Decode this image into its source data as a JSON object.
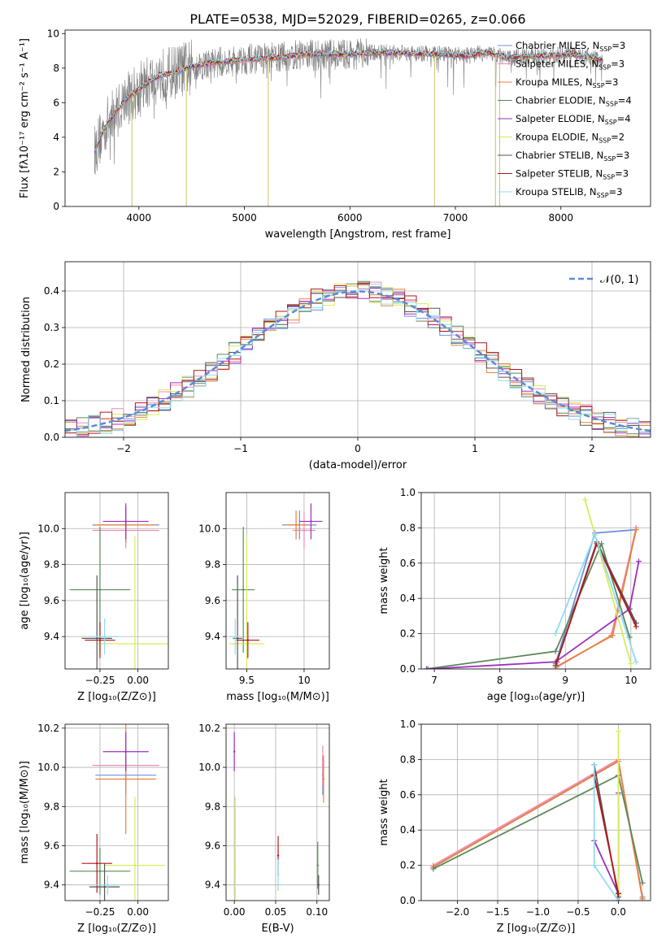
{
  "figure": {
    "title": "PLATE=0538, MJD=52029, FIBERID=0265, z=0.066"
  },
  "colors": {
    "Chabrier MILES": "#6f8fdf",
    "Salpeter MILES": "#f08ab5",
    "Kroupa MILES": "#e8823a",
    "Chabrier ELODIE": "#5a8a5a",
    "Salpeter ELODIE": "#9b30c0",
    "Kroupa ELODIE": "#d7ec5a",
    "Chabrier STELIB": "#555555",
    "Salpeter STELIB": "#b5161c",
    "Kroupa STELIB": "#8fdcef",
    "data": "#808080",
    "gauss": "#5b8bd9"
  },
  "chart_data": [
    {
      "id": "spectrum",
      "type": "line",
      "title": "PLATE=0538, MJD=52029, FIBERID=0265, z=0.066",
      "xlabel": "wavelength [Angstrom, rest frame]",
      "ylabel": "Flux [fλ10⁻¹⁷ erg cm⁻² s⁻¹ A⁻¹]",
      "xlim": [
        3300,
        8850
      ],
      "ylim": [
        0,
        10.2
      ],
      "xticks": [
        4000,
        5000,
        6000,
        7000,
        8000
      ],
      "yticks": [
        0,
        2,
        4,
        6,
        8,
        10
      ],
      "legend_position": "right",
      "legend": [
        {
          "label": "Chabrier MILES, N",
          "sub": "SSP",
          "n": "=3",
          "color": "#6f8fdf"
        },
        {
          "label": "Salpeter MILES, N",
          "sub": "SSP",
          "n": "=3",
          "color": "#f08ab5"
        },
        {
          "label": "Kroupa MILES, N",
          "sub": "SSP",
          "n": "=3",
          "color": "#e8823a"
        },
        {
          "label": "Chabrier ELODIE, N",
          "sub": "SSP",
          "n": "=4",
          "color": "#5a8a5a"
        },
        {
          "label": "Salpeter ELODIE, N",
          "sub": "SSP",
          "n": "=4",
          "color": "#9b30c0"
        },
        {
          "label": "Kroupa ELODIE, N",
          "sub": "SSP",
          "n": "=2",
          "color": "#d7ec5a"
        },
        {
          "label": "Chabrier STELIB, N",
          "sub": "SSP",
          "n": "=3",
          "color": "#555555"
        },
        {
          "label": "Salpeter STELIB, N",
          "sub": "SSP",
          "n": "=3",
          "color": "#b5161c"
        },
        {
          "label": "Kroupa STELIB, N",
          "sub": "SSP",
          "n": "=3",
          "color": "#8fdcef"
        }
      ],
      "continuum": {
        "x": [
          3580,
          3650,
          3700,
          3800,
          3900,
          4000,
          4100,
          4200,
          4300,
          4500,
          4700,
          5000,
          5300,
          5600,
          6000,
          6300,
          6600,
          6900,
          7100,
          7300,
          7500,
          7800,
          8100,
          8400
        ],
        "y": [
          3.2,
          4.2,
          4.8,
          5.6,
          6.3,
          6.8,
          7.2,
          7.6,
          7.7,
          8.1,
          8.3,
          8.5,
          8.6,
          8.8,
          8.8,
          8.9,
          8.85,
          8.8,
          8.7,
          8.9,
          8.6,
          8.7,
          8.8,
          8.5
        ]
      },
      "absorption_lines": [
        {
          "x": 3934,
          "y": 0.0
        },
        {
          "x": 4450,
          "y": 0.0
        },
        {
          "x": 5226,
          "y": 0.0
        },
        {
          "x": 6802,
          "y": 0.0
        },
        {
          "x": 7380,
          "y": 0.0
        },
        {
          "x": 7420,
          "y": 0.0
        }
      ]
    },
    {
      "id": "residuals",
      "type": "histogram",
      "xlabel": "(data-model)/error",
      "ylabel": "Normed distribution",
      "xlim": [
        -2.5,
        2.5
      ],
      "ylim": [
        0,
        0.48
      ],
      "xticks": [
        -2,
        -1,
        0,
        1,
        2
      ],
      "yticks": [
        0.0,
        0.1,
        0.2,
        0.3,
        0.4
      ],
      "legend_label": "𝒩(0, 1)",
      "legend_position": "upper right",
      "bins": [
        -2.5,
        -2.4,
        -2.3,
        -2.2,
        -2.1,
        -2.0,
        -1.9,
        -1.8,
        -1.7,
        -1.6,
        -1.5,
        -1.4,
        -1.3,
        -1.2,
        -1.1,
        -1.0,
        -0.9,
        -0.8,
        -0.7,
        -0.6,
        -0.5,
        -0.4,
        -0.3,
        -0.2,
        -0.1,
        0.0,
        0.1,
        0.2,
        0.3,
        0.4,
        0.5,
        0.6,
        0.7,
        0.8,
        0.9,
        1.0,
        1.1,
        1.2,
        1.3,
        1.4,
        1.5,
        1.6,
        1.7,
        1.8,
        1.9,
        2.0,
        2.1,
        2.2,
        2.3,
        2.4,
        2.5
      ],
      "gauss": {
        "mean": 0,
        "sigma": 1
      }
    },
    {
      "id": "age-vs-Z",
      "type": "errorbar",
      "xlabel": "Z [log₁₀(Z/Z⊙)]",
      "ylabel": "age  [log₁₀(age/yr)]",
      "xlim": [
        -0.48,
        0.2
      ],
      "ylim": [
        9.22,
        10.2
      ],
      "xticks": [
        -0.25,
        0.0
      ],
      "xtick_labels": [
        "−0.25",
        "0.00"
      ],
      "yticks": [
        9.4,
        9.6,
        9.8,
        10.0
      ],
      "points": [
        {
          "s": "Chabrier MILES",
          "x": -0.08,
          "y": 10.02,
          "xe": 0.22,
          "ye": 0.1
        },
        {
          "s": "Salpeter MILES",
          "x": -0.08,
          "y": 9.99,
          "xe": 0.22,
          "ye": 0.1
        },
        {
          "s": "Kroupa MILES",
          "x": -0.08,
          "y": 10.02,
          "xe": 0.2,
          "ye": 0.1
        },
        {
          "s": "Chabrier ELODIE",
          "x": -0.25,
          "y": 9.66,
          "xe": 0.2,
          "ye": 0.35
        },
        {
          "s": "Salpeter ELODIE",
          "x": -0.08,
          "y": 10.04,
          "xe": 0.15,
          "ye": 0.1
        },
        {
          "s": "Kroupa ELODIE",
          "x": -0.02,
          "y": 9.36,
          "xe": 0.25,
          "ye": 0.6
        },
        {
          "s": "Chabrier STELIB",
          "x": -0.27,
          "y": 9.39,
          "xe": 0.1,
          "ye": 0.35
        },
        {
          "s": "Salpeter STELIB",
          "x": -0.25,
          "y": 9.38,
          "xe": 0.1,
          "ye": 0.1
        },
        {
          "s": "Kroupa STELIB",
          "x": -0.22,
          "y": 9.4,
          "xe": 0.1,
          "ye": 0.1
        }
      ]
    },
    {
      "id": "age-vs-mass",
      "type": "errorbar",
      "xlabel": "mass [log₁₀(M/M⊙)]",
      "xlim": [
        9.32,
        10.22
      ],
      "ylim": [
        9.22,
        10.2
      ],
      "xticks": [
        9.5,
        10.0
      ],
      "yticks": [
        9.4,
        9.6,
        9.8,
        10.0
      ],
      "points": [
        {
          "s": "Chabrier MILES",
          "x": 9.96,
          "y": 10.02,
          "xe": 0.15,
          "ye": 0.08
        },
        {
          "s": "Salpeter MILES",
          "x": 10.0,
          "y": 9.99,
          "xe": 0.1,
          "ye": 0.1
        },
        {
          "s": "Kroupa MILES",
          "x": 9.93,
          "y": 10.02,
          "xe": 0.1,
          "ye": 0.08
        },
        {
          "s": "Chabrier ELODIE",
          "x": 9.47,
          "y": 9.66,
          "xe": 0.1,
          "ye": 0.35
        },
        {
          "s": "Salpeter ELODIE",
          "x": 10.06,
          "y": 10.04,
          "xe": 0.1,
          "ye": 0.1
        },
        {
          "s": "Kroupa ELODIE",
          "x": 9.5,
          "y": 9.36,
          "xe": 0.15,
          "ye": 0.6
        },
        {
          "s": "Chabrier STELIB",
          "x": 9.42,
          "y": 9.39,
          "xe": 0.04,
          "ye": 0.35
        },
        {
          "s": "Salpeter STELIB",
          "x": 9.51,
          "y": 9.38,
          "xe": 0.1,
          "ye": 0.1
        },
        {
          "s": "Kroupa STELIB",
          "x": 9.4,
          "y": 9.4,
          "xe": 0.05,
          "ye": 0.1
        }
      ]
    },
    {
      "id": "massweight-vs-age",
      "type": "line",
      "xlabel": "age  [log₁₀(age/yr)]",
      "ylabel": "mass weight",
      "xlim": [
        6.8,
        10.3
      ],
      "ylim": [
        0,
        1.0
      ],
      "xticks": [
        7,
        8,
        9,
        10
      ],
      "yticks": [
        0.0,
        0.2,
        0.4,
        0.6,
        0.8,
        1.0
      ],
      "series": [
        {
          "s": "Chabrier MILES",
          "x": [
            8.85,
            9.45,
            10.08
          ],
          "y": [
            0.03,
            0.77,
            0.79
          ]
        },
        {
          "s": "Salpeter MILES",
          "x": [
            8.87,
            9.7,
            10.08
          ],
          "y": [
            0.01,
            0.19,
            0.8
          ]
        },
        {
          "s": "Kroupa MILES",
          "x": [
            8.85,
            9.72,
            10.08
          ],
          "y": [
            0.01,
            0.19,
            0.79
          ]
        },
        {
          "s": "Chabrier ELODIE",
          "x": [
            6.88,
            8.85,
            9.55,
            9.98
          ],
          "y": [
            0.0,
            0.1,
            0.71,
            0.18
          ]
        },
        {
          "s": "Salpeter ELODIE",
          "x": [
            6.9,
            8.85,
            9.98,
            10.12
          ],
          "y": [
            0.0,
            0.04,
            0.34,
            0.61
          ]
        },
        {
          "s": "Kroupa ELODIE",
          "x": [
            9.3,
            10.0
          ],
          "y": [
            0.96,
            0.03
          ]
        },
        {
          "s": "Chabrier STELIB",
          "x": [
            8.85,
            9.48,
            10.08
          ],
          "y": [
            0.02,
            0.72,
            0.26
          ]
        },
        {
          "s": "Salpeter STELIB",
          "x": [
            8.87,
            9.48,
            10.08
          ],
          "y": [
            0.04,
            0.71,
            0.24
          ]
        },
        {
          "s": "Kroupa STELIB",
          "x": [
            8.85,
            9.45,
            10.08
          ],
          "y": [
            0.2,
            0.76,
            0.04
          ]
        }
      ]
    },
    {
      "id": "mass-vs-Z",
      "type": "errorbar",
      "xlabel": "Z [log₁₀(Z/Z⊙)]",
      "ylabel": "mass [log₁₀(M/M⊙)]",
      "xlim": [
        -0.48,
        0.2
      ],
      "ylim": [
        9.32,
        10.22
      ],
      "xticks": [
        -0.25,
        0.0
      ],
      "xtick_labels": [
        "−0.25",
        "0.00"
      ],
      "yticks": [
        9.4,
        9.6,
        9.8,
        10.0,
        10.2
      ],
      "points": [
        {
          "s": "Chabrier MILES",
          "x": -0.08,
          "y": 9.96,
          "xe": 0.2,
          "ye": 0.1
        },
        {
          "s": "Salpeter MILES",
          "x": -0.08,
          "y": 10.01,
          "xe": 0.22,
          "ye": 0.1
        },
        {
          "s": "Kroupa MILES",
          "x": -0.08,
          "y": 9.94,
          "xe": 0.2,
          "ye": 0.28
        },
        {
          "s": "Chabrier ELODIE",
          "x": -0.25,
          "y": 9.47,
          "xe": 0.2,
          "ye": 0.12
        },
        {
          "s": "Salpeter ELODIE",
          "x": -0.08,
          "y": 10.08,
          "xe": 0.15,
          "ye": 0.1
        },
        {
          "s": "Kroupa ELODIE",
          "x": -0.02,
          "y": 9.5,
          "xe": 0.2,
          "ye": 0.35
        },
        {
          "s": "Chabrier STELIB",
          "x": -0.22,
          "y": 9.39,
          "xe": 0.1,
          "ye": 0.12
        },
        {
          "s": "Salpeter STELIB",
          "x": -0.27,
          "y": 9.51,
          "xe": 0.1,
          "ye": 0.15
        },
        {
          "s": "Kroupa STELIB",
          "x": -0.2,
          "y": 9.4,
          "xe": 0.08,
          "ye": 0.05
        }
      ]
    },
    {
      "id": "mass-vs-ebv",
      "type": "errorbar",
      "xlabel": "E(B-V)",
      "xlim": [
        -0.01,
        0.115
      ],
      "ylim": [
        9.32,
        10.22
      ],
      "xticks": [
        0.0,
        0.05,
        0.1
      ],
      "xtick_labels": [
        "0.00",
        "0.05",
        "0.10"
      ],
      "yticks": [
        9.4,
        9.6,
        9.8,
        10.0,
        10.2
      ],
      "points": [
        {
          "s": "Chabrier MILES",
          "x": 0.107,
          "y": 9.96,
          "xe": 0,
          "ye": 0.1
        },
        {
          "s": "Salpeter MILES",
          "x": 0.107,
          "y": 10.01,
          "xe": 0,
          "ye": 0.1
        },
        {
          "s": "Kroupa MILES",
          "x": 0.108,
          "y": 9.94,
          "xe": 0,
          "ye": 0.12
        },
        {
          "s": "Chabrier ELODIE",
          "x": 0.101,
          "y": 9.5,
          "xe": 0,
          "ye": 0.12
        },
        {
          "s": "Salpeter ELODIE",
          "x": 0.0,
          "y": 10.08,
          "xe": 0,
          "ye": 0.1
        },
        {
          "s": "Kroupa ELODIE",
          "x": 0.001,
          "y": 9.5,
          "xe": 0,
          "ye": 0.35
        },
        {
          "s": "Chabrier STELIB",
          "x": 0.102,
          "y": 9.4,
          "xe": 0,
          "ye": 0.05
        },
        {
          "s": "Salpeter STELIB",
          "x": 0.053,
          "y": 9.55,
          "xe": 0,
          "ye": 0.1
        },
        {
          "s": "Kroupa STELIB",
          "x": 0.053,
          "y": 9.45,
          "xe": 0,
          "ye": 0.08
        }
      ]
    },
    {
      "id": "massweight-vs-Z",
      "type": "line",
      "xlabel": "Z [log₁₀(Z/Z⊙)]",
      "ylabel": "mass weight",
      "xlim": [
        -2.45,
        0.4
      ],
      "ylim": [
        0,
        1.0
      ],
      "xticks": [
        -2.0,
        -1.5,
        -1.0,
        -0.5,
        0.0
      ],
      "xtick_labels": [
        "−2.0",
        "−1.5",
        "−1.0",
        "−0.5",
        "0.0"
      ],
      "yticks": [
        0.0,
        0.2,
        0.4,
        0.6,
        0.8,
        1.0
      ],
      "series": [
        {
          "s": "Chabrier MILES",
          "x": [
            -2.3,
            0.0,
            0.3
          ],
          "y": [
            0.19,
            0.79,
            0.02
          ]
        },
        {
          "s": "Salpeter MILES",
          "x": [
            -2.3,
            0.0,
            0.3
          ],
          "y": [
            0.2,
            0.8,
            0.01
          ]
        },
        {
          "s": "Kroupa MILES",
          "x": [
            -2.3,
            0.0,
            0.3
          ],
          "y": [
            0.19,
            0.79,
            0.01
          ]
        },
        {
          "s": "Chabrier ELODIE",
          "x": [
            -2.3,
            0.0,
            0.3
          ],
          "y": [
            0.18,
            0.71,
            0.1
          ]
        },
        {
          "s": "Salpeter ELODIE",
          "x": [
            -0.3,
            0.0,
            0.0
          ],
          "y": [
            0.34,
            0.04,
            0.61
          ]
        },
        {
          "s": "Kroupa ELODIE",
          "x": [
            0.0,
            0.0
          ],
          "y": [
            0.96,
            0.03
          ]
        },
        {
          "s": "Chabrier STELIB",
          "x": [
            -0.3,
            0.0,
            0.0
          ],
          "y": [
            0.77,
            0.02,
            0.0
          ]
        },
        {
          "s": "Salpeter STELIB",
          "x": [
            -0.3,
            0.0,
            0.0
          ],
          "y": [
            0.71,
            0.04,
            0.0
          ]
        },
        {
          "s": "Kroupa STELIB",
          "x": [
            -0.3,
            -0.3,
            0.0
          ],
          "y": [
            0.77,
            0.2,
            0.0
          ]
        }
      ]
    }
  ]
}
